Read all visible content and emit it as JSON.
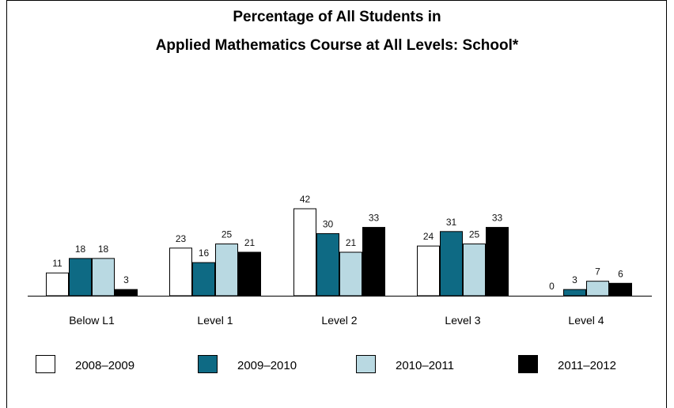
{
  "chart_data": {
    "type": "bar",
    "title": [
      "Percentage of All Students in",
      "Applied Mathematics Course at All Levels: School*"
    ],
    "categories": [
      "Below L1",
      "Level 1",
      "Level 2",
      "Level 3",
      "Level 4"
    ],
    "series": [
      {
        "name": "2008–2009",
        "color": "#ffffff",
        "values": [
          11,
          23,
          42,
          24,
          0
        ]
      },
      {
        "name": "2009–2010",
        "color": "#0e6a84",
        "values": [
          18,
          16,
          30,
          31,
          3
        ]
      },
      {
        "name": "2010–2011",
        "color": "#b9d9e2",
        "values": [
          18,
          25,
          21,
          25,
          7
        ]
      },
      {
        "name": "2011–2012",
        "color": "#000000",
        "values": [
          3,
          21,
          33,
          33,
          6
        ]
      }
    ],
    "ylim": [
      0,
      42
    ],
    "grid": false,
    "legend_position": "bottom",
    "xlabel": "",
    "ylabel": ""
  }
}
